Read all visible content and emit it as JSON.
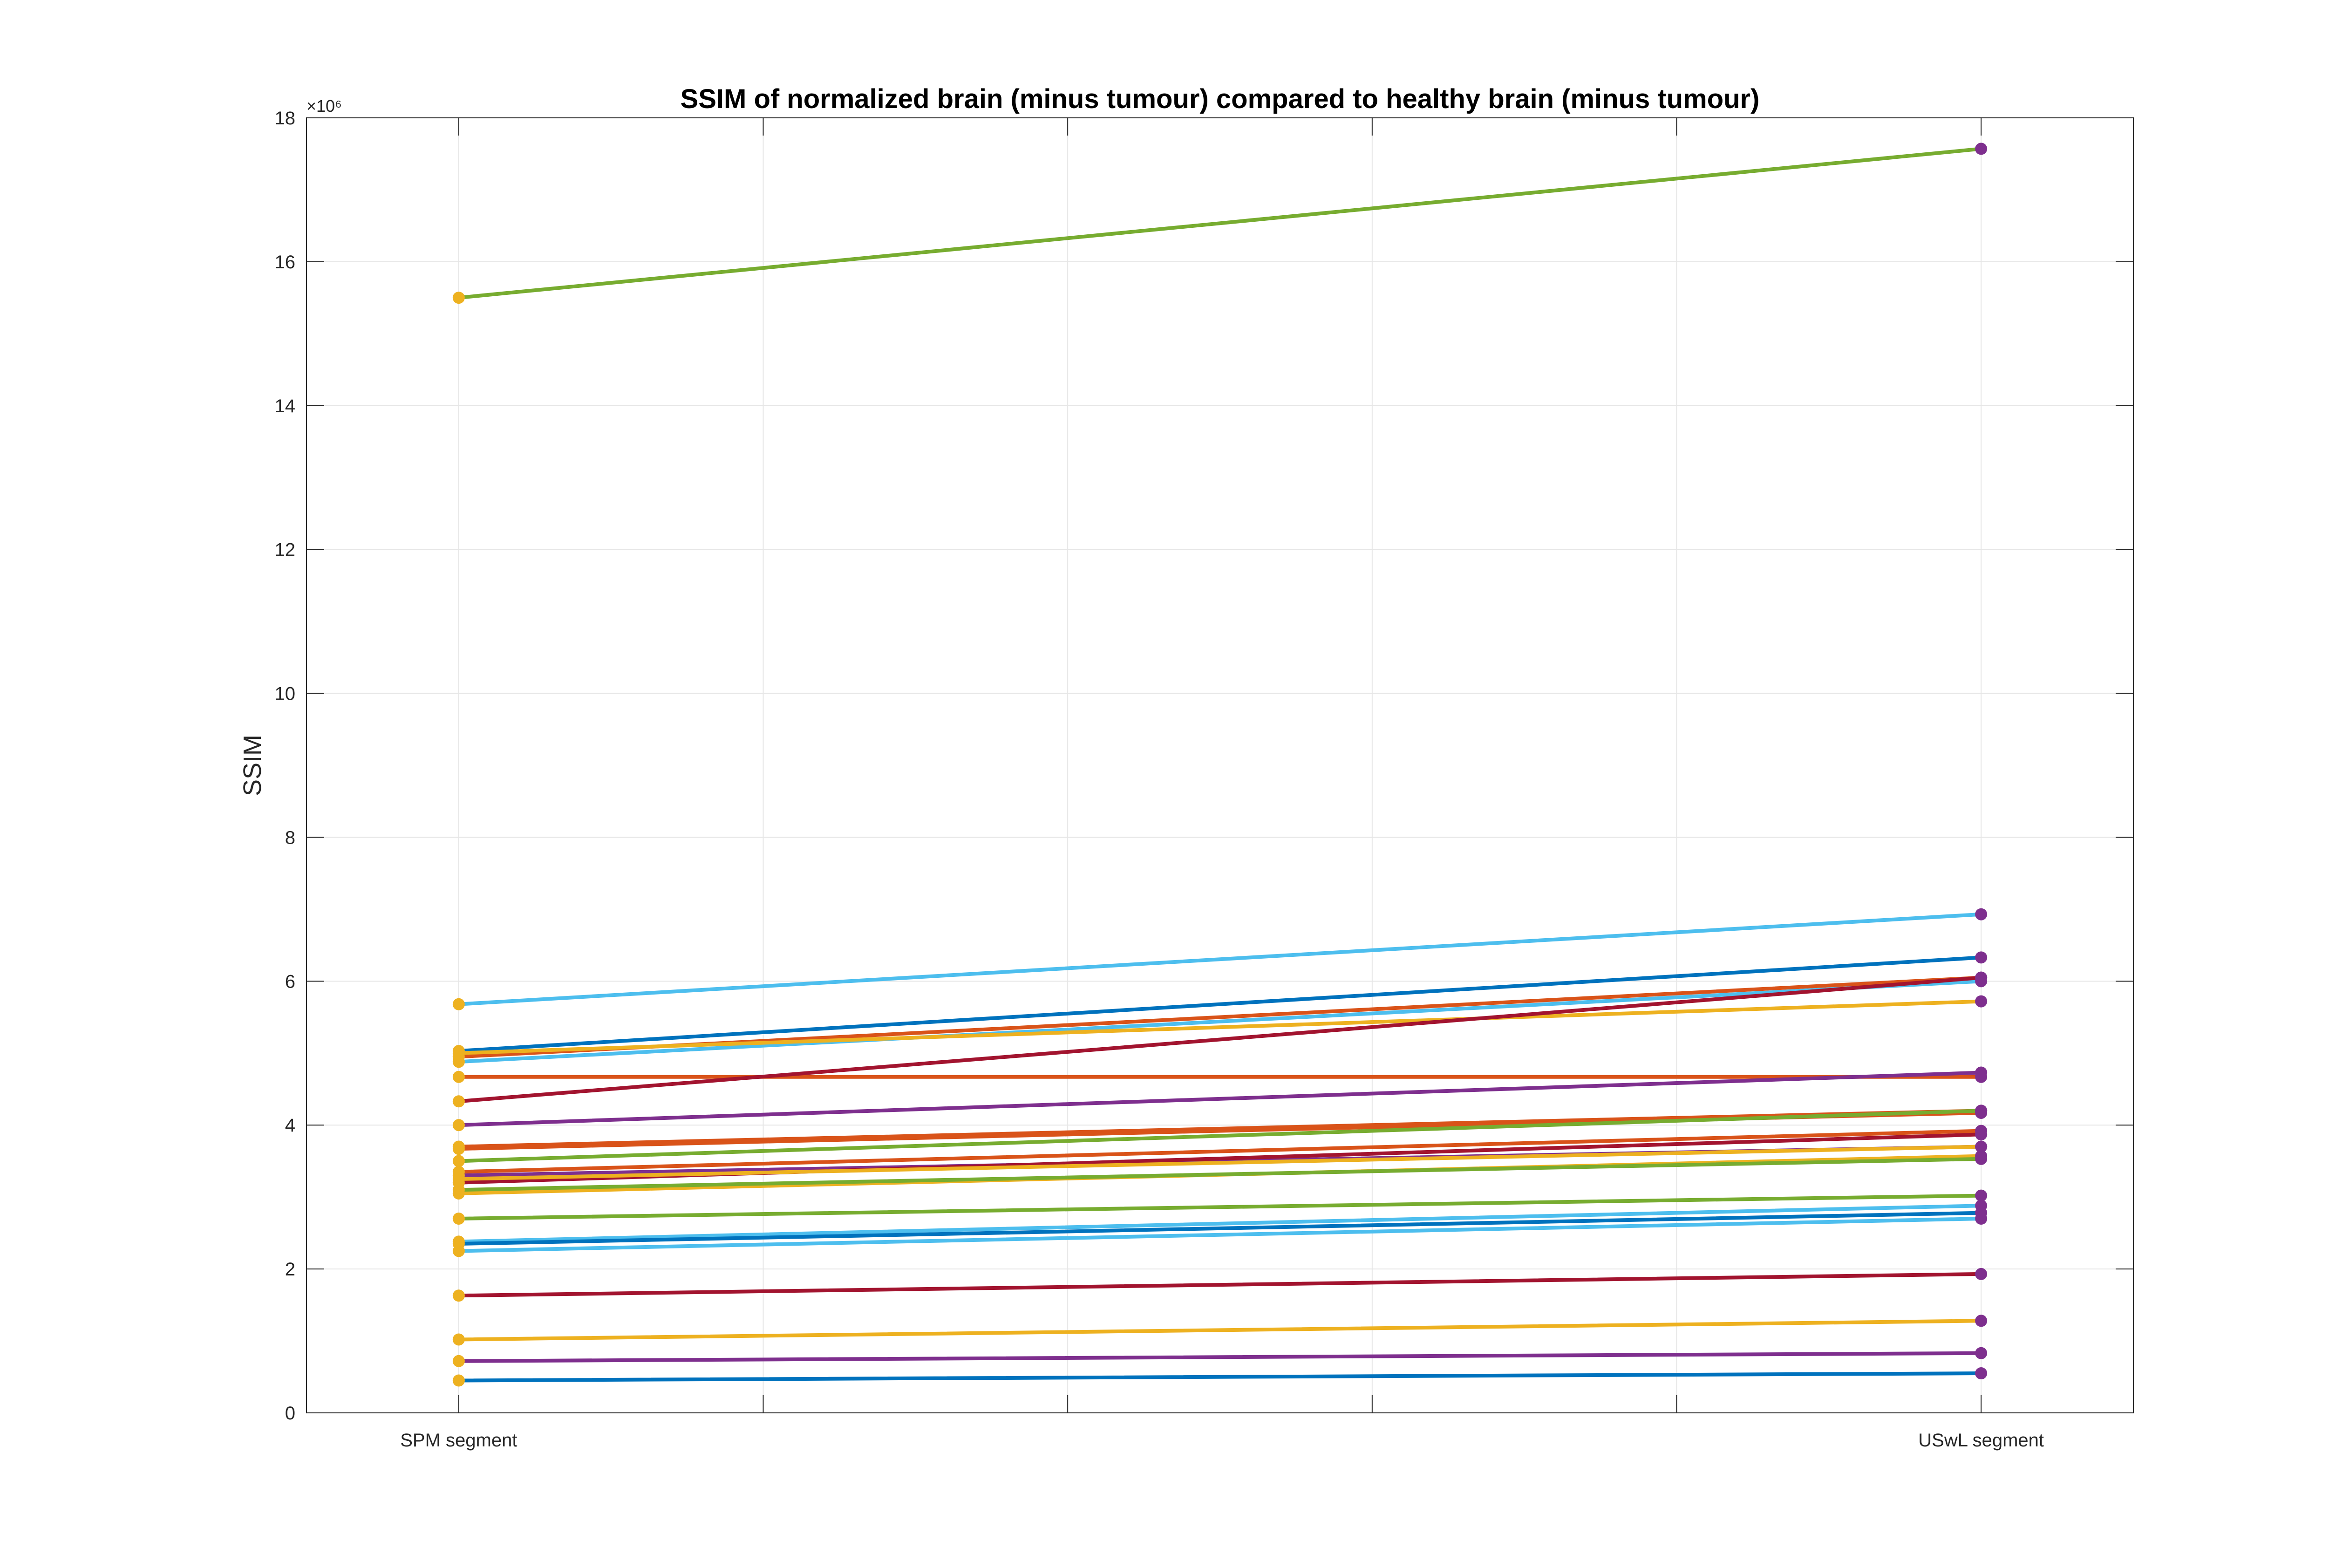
{
  "chart_data": {
    "type": "line",
    "title": "SSIM of normalized brain (minus tumour) compared to healthy brain (minus tumour)",
    "xlabel": "",
    "ylabel": "SSIM",
    "y_exponent_label": "×10⁶",
    "y_multiplier": 1000000,
    "categories": [
      "SPM segment",
      "USwL segment"
    ],
    "x_range": [
      0.5,
      6.5
    ],
    "x_grid_ticks": [
      1,
      2,
      3,
      4,
      5,
      6
    ],
    "ylim": [
      0,
      18
    ],
    "y_ticks": [
      0,
      2,
      4,
      6,
      8,
      10,
      12,
      14,
      16,
      18
    ],
    "y_tick_labels": [
      "0",
      "2",
      "4",
      "6",
      "8",
      "10",
      "12",
      "14",
      "16",
      "18"
    ],
    "grid": true,
    "marker_colors": {
      "start": "#EDB120",
      "end": "#7E2F8E"
    },
    "series": [
      {
        "values": [
          15.5,
          17.57
        ],
        "color": "#77AC30"
      },
      {
        "values": [
          5.68,
          6.93
        ],
        "color": "#4DBEEE"
      },
      {
        "values": [
          5.03,
          6.33
        ],
        "color": "#0072BD"
      },
      {
        "values": [
          4.95,
          6.05
        ],
        "color": "#D95319"
      },
      {
        "values": [
          4.88,
          6.0
        ],
        "color": "#4DBEEE"
      },
      {
        "values": [
          5.0,
          5.72
        ],
        "color": "#EDB120"
      },
      {
        "values": [
          4.67,
          4.67
        ],
        "color": "#D95319"
      },
      {
        "values": [
          4.33,
          6.05
        ],
        "color": "#A2142F"
      },
      {
        "values": [
          4.0,
          4.73
        ],
        "color": "#7E2F8E"
      },
      {
        "values": [
          3.7,
          4.2
        ],
        "color": "#D95319"
      },
      {
        "values": [
          3.67,
          4.17
        ],
        "color": "#D95319"
      },
      {
        "values": [
          3.5,
          4.2
        ],
        "color": "#77AC30"
      },
      {
        "values": [
          3.35,
          3.92
        ],
        "color": "#D95319"
      },
      {
        "values": [
          3.3,
          3.7
        ],
        "color": "#7E2F8E"
      },
      {
        "values": [
          3.2,
          3.87
        ],
        "color": "#A2142F"
      },
      {
        "values": [
          3.25,
          3.7
        ],
        "color": "#EDB120"
      },
      {
        "values": [
          3.05,
          3.57
        ],
        "color": "#EDB120"
      },
      {
        "values": [
          3.1,
          3.53
        ],
        "color": "#77AC30"
      },
      {
        "values": [
          2.7,
          3.02
        ],
        "color": "#77AC30"
      },
      {
        "values": [
          2.38,
          2.88
        ],
        "color": "#4DBEEE"
      },
      {
        "values": [
          2.35,
          2.78
        ],
        "color": "#0072BD"
      },
      {
        "values": [
          2.25,
          2.7
        ],
        "color": "#4DBEEE"
      },
      {
        "values": [
          1.63,
          1.93
        ],
        "color": "#A2142F"
      },
      {
        "values": [
          1.02,
          1.28
        ],
        "color": "#EDB120"
      },
      {
        "values": [
          0.72,
          0.83
        ],
        "color": "#7E2F8E"
      },
      {
        "values": [
          0.45,
          0.55
        ],
        "color": "#0072BD"
      }
    ]
  }
}
